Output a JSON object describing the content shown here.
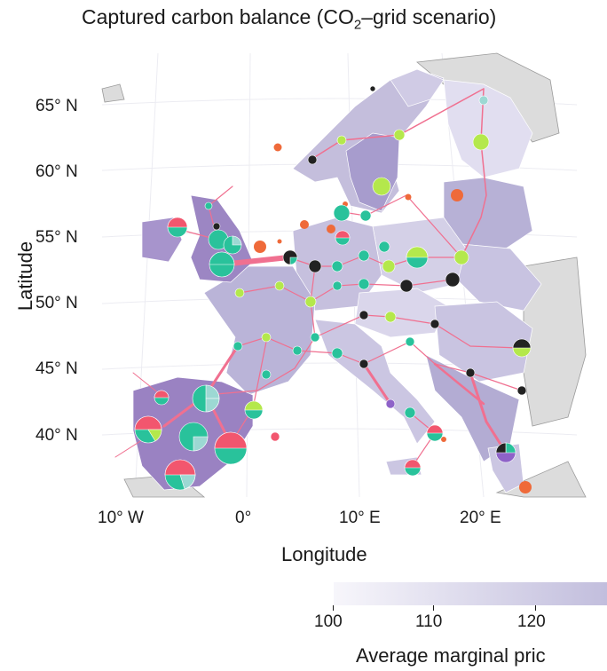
{
  "title": {
    "main": "Captured carbon balance (CO",
    "sub": "2",
    "rest": "–grid scenario)"
  },
  "axes": {
    "y_title": "Latitude",
    "x_title": "Longitude",
    "lat_ticks": [
      "65° N",
      "60° N",
      "55° N",
      "50° N",
      "45° N",
      "40° N"
    ],
    "lon_ticks": [
      "10° W",
      "0°",
      "10° E",
      "20° E"
    ]
  },
  "colorbar": {
    "title": "Average marginal pric",
    "ticks": [
      "100",
      "110",
      "120"
    ],
    "range": [
      98,
      128
    ],
    "color_low": "#f7f6fb",
    "color_high": "#c2bedd"
  },
  "colors": {
    "land_low": "#e8e6f2",
    "land_mid": "#bab4d8",
    "land_high": "#8c6fb6",
    "outside_land": "#dcdcdc",
    "pipeline": "#f07090",
    "pie_red": "#f2566e",
    "pie_teal": "#29c29b",
    "pie_lightblue": "#9cd8d3",
    "pie_lime": "#b4e84c",
    "pie_black": "#222222",
    "pie_purple": "#8e62c8",
    "storage_dot": "#ef6a3a"
  }
}
